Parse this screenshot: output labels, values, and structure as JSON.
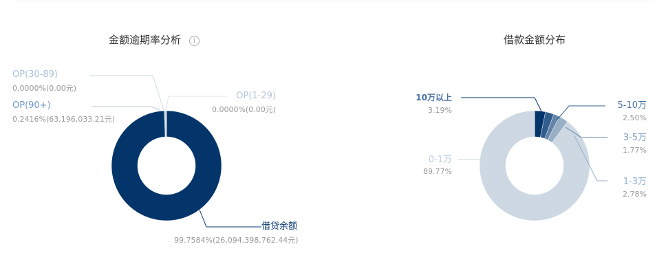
{
  "left_chart": {
    "title": "金额逾期率分析",
    "info_icon": "info-circle-icon",
    "slices": [
      {
        "label": "借贷余额",
        "percent": 99.7584,
        "value_text": "99.7584%(26,094,398,762.44元)",
        "color": "#03356b"
      },
      {
        "label": "OP(90+)",
        "percent": 0.2416,
        "value_text": "0.2416%(63,196,033.21元)",
        "color": "#6384a8"
      },
      {
        "label": "OP(30-89)",
        "percent": 0.0,
        "value_text": "0.0000%(0.00元)",
        "color": "#98afc6"
      },
      {
        "label": "OP(1-29)",
        "percent": 0.0,
        "value_text": "0.0000%(0.00元)",
        "color": "#cdd8e3"
      }
    ]
  },
  "right_chart": {
    "title": "借款金额分布",
    "slices": [
      {
        "label": "10万以上",
        "percent": 3.19,
        "value_text": "3.19%",
        "color": "#03356b"
      },
      {
        "label": "5-10万",
        "percent": 2.5,
        "value_text": "2.50%",
        "color": "#315d8c"
      },
      {
        "label": "3-5万",
        "percent": 1.77,
        "value_text": "1.77%",
        "color": "#6384a8"
      },
      {
        "label": "1-3万",
        "percent": 2.78,
        "value_text": "2.78%",
        "color": "#98afc6"
      },
      {
        "label": "0-1万",
        "percent": 89.77,
        "value_text": "89.77%",
        "color": "#cdd8e3"
      }
    ]
  }
}
